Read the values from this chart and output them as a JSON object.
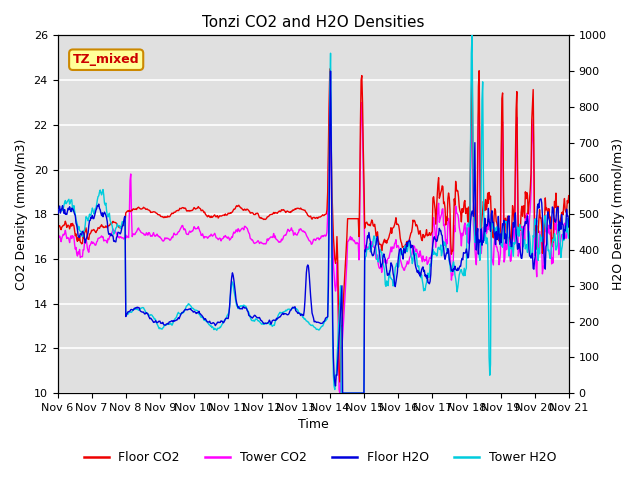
{
  "title": "Tonzi CO2 and H2O Densities",
  "xlabel": "Time",
  "ylabel_left": "CO2 Density (mmol/m3)",
  "ylabel_right": "H2O Density (mmol/m3)",
  "ylim_left": [
    10,
    26
  ],
  "ylim_right": [
    0,
    1000
  ],
  "yticks_left": [
    10,
    12,
    14,
    16,
    18,
    20,
    22,
    24,
    26
  ],
  "yticks_right": [
    0,
    100,
    200,
    300,
    400,
    500,
    600,
    700,
    800,
    900,
    1000
  ],
  "xtick_labels": [
    "Nov 6",
    "Nov 7",
    "Nov 8",
    "Nov 9",
    "Nov 10",
    "Nov 11",
    "Nov 12",
    "Nov 13",
    "Nov 14",
    "Nov 15",
    "Nov 16",
    "Nov 17",
    "Nov 18",
    "Nov 19",
    "Nov 20",
    "Nov 21"
  ],
  "annotation_text": "TZ_mixed",
  "annotation_color": "#cc0000",
  "annotation_bg": "#ffff99",
  "annotation_border": "#cc8800",
  "colors": {
    "floor_co2": "#ee0000",
    "tower_co2": "#ff00ff",
    "floor_h2o": "#0000dd",
    "tower_h2o": "#00ccdd"
  },
  "legend_labels": [
    "Floor CO2",
    "Tower CO2",
    "Floor H2O",
    "Tower H2O"
  ],
  "background_color": "#e0e0e0",
  "seed": 7
}
